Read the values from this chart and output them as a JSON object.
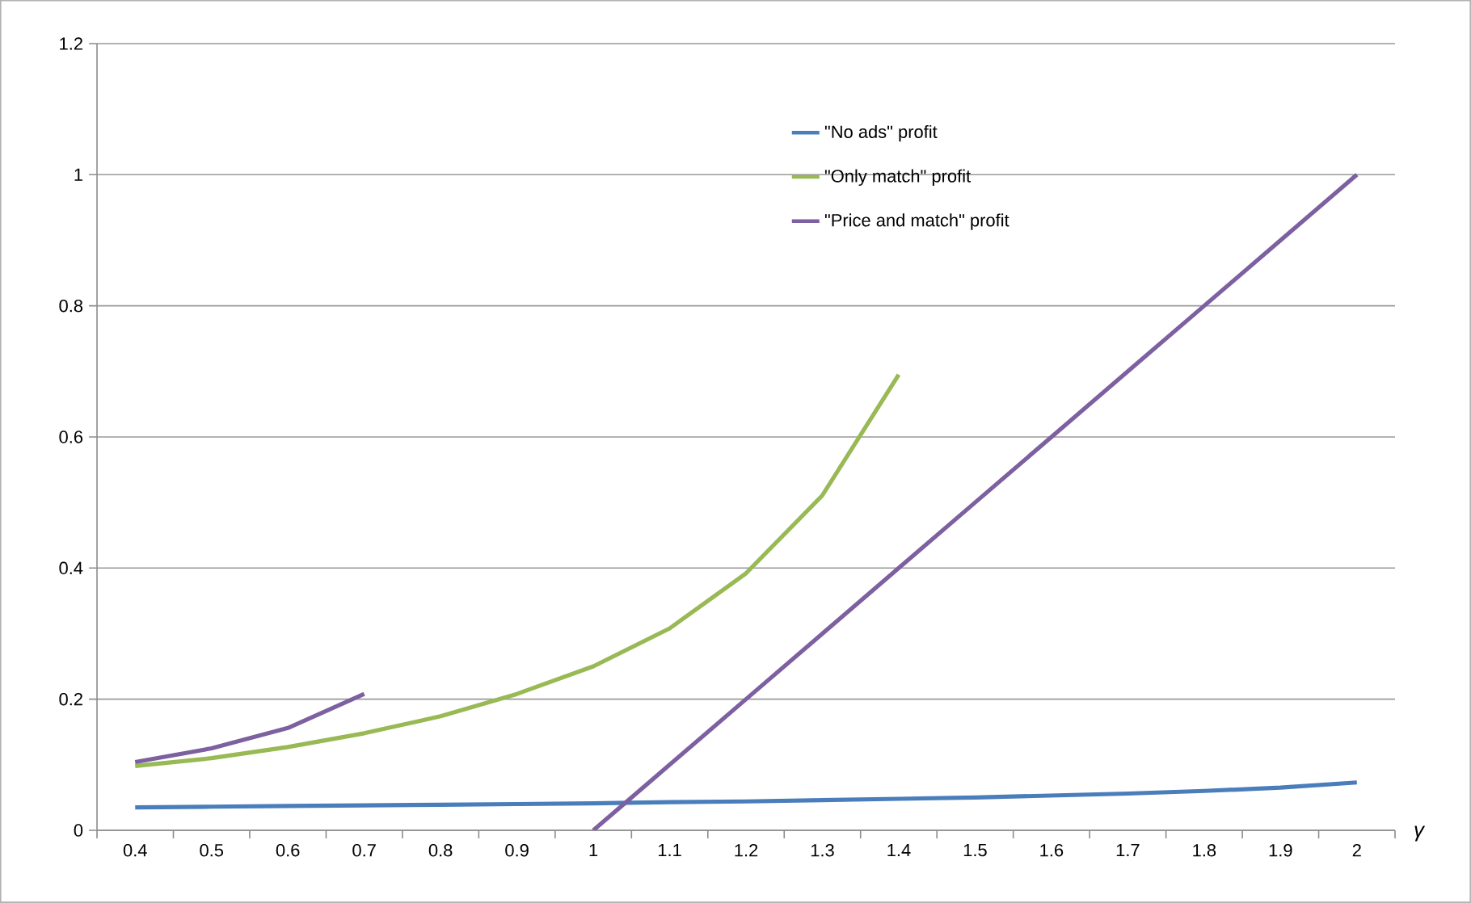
{
  "chart_data": {
    "type": "line",
    "xlabel": "γ",
    "categories": [
      "0.4",
      "0.5",
      "0.6",
      "0.7",
      "0.8",
      "0.9",
      "1",
      "1.1",
      "1.2",
      "1.3",
      "1.4",
      "1.5",
      "1.6",
      "1.7",
      "1.8",
      "1.9",
      "2"
    ],
    "series": [
      {
        "name": "\"No ads\" profit",
        "color": "#4a7ebb",
        "values": [
          0.035,
          0.036,
          0.037,
          0.038,
          0.039,
          0.04,
          0.041,
          0.043,
          0.044,
          0.046,
          0.048,
          0.05,
          0.053,
          0.056,
          0.06,
          0.065,
          0.073
        ]
      },
      {
        "name": "\"Only match\" profit",
        "color": "#98b954",
        "values": [
          0.098,
          0.11,
          0.127,
          0.148,
          0.174,
          0.208,
          0.25,
          0.308,
          0.392,
          0.511,
          0.695,
          null,
          null,
          null,
          null,
          null,
          null
        ]
      },
      {
        "name": "\"Price and match\" profit",
        "color": "#7d60a0",
        "values": [
          0.104,
          0.125,
          0.156,
          0.208,
          null,
          null,
          0,
          0.1,
          0.2,
          0.3,
          0.4,
          0.5,
          0.6,
          0.7,
          0.8,
          0.9,
          1.0
        ]
      }
    ],
    "ylim": [
      0,
      1.2
    ],
    "yticks": [
      0,
      0.2,
      0.4,
      0.6,
      0.8,
      1,
      1.2
    ],
    "grid": "y",
    "legend": "top right",
    "marker": "none",
    "line_style": "solid"
  }
}
